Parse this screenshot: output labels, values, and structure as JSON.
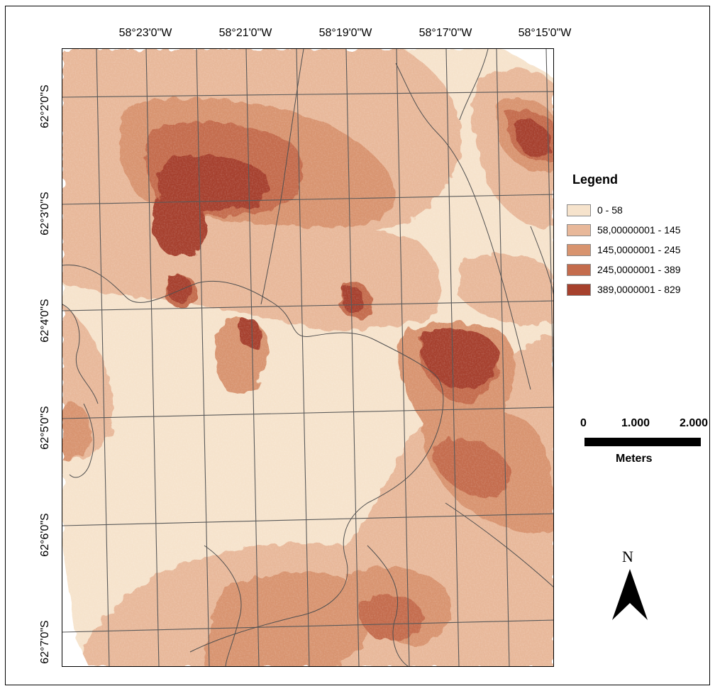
{
  "longitude_labels": [
    "58°23'0\"W",
    "58°21'0\"W",
    "58°19'0\"W",
    "58°17'0\"W",
    "58°15'0\"W"
  ],
  "latitude_labels": [
    "62°2'0\"S",
    "62°3'0\"S",
    "62°4'0\"S",
    "62°5'0\"S",
    "62°6'0\"S",
    "62°7'0\"S"
  ],
  "legend": {
    "title": "Legend",
    "classes": [
      {
        "label": "0 - 58",
        "color": "#f6e3cc"
      },
      {
        "label": "58,00000001 - 145",
        "color": "#e8b89a"
      },
      {
        "label": "145,0000001 - 245",
        "color": "#d8946f"
      },
      {
        "label": "245,0000001 - 389",
        "color": "#c46c4d"
      },
      {
        "label": "389,0000001 - 829",
        "color": "#a6412d"
      }
    ]
  },
  "scale_bar": {
    "ticks": [
      "0",
      "1.000",
      "2.000"
    ],
    "unit": "Meters"
  },
  "north_arrow": {
    "label": "N",
    "icon": "north-arrow-icon"
  },
  "colors": {
    "grid": "#5a5a5a",
    "frame": "#000000"
  }
}
